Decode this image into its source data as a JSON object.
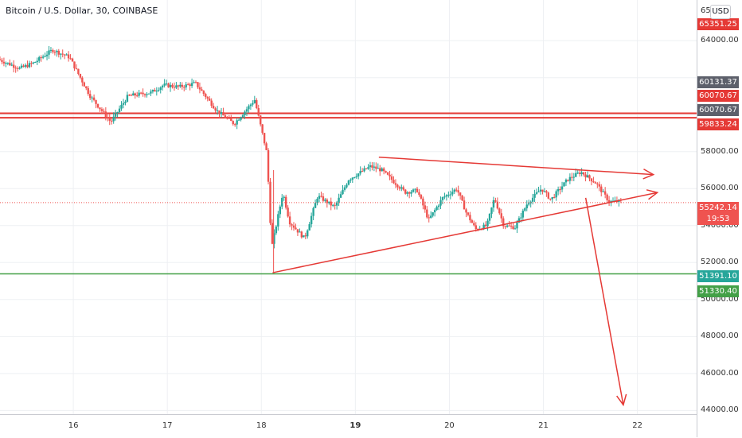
{
  "header": {
    "title": "Bitcoin / U.S. Dollar, 30, COINBASE",
    "currency_button": "USD"
  },
  "price_axis": {
    "labels": [
      "64000.00",
      "58000.00",
      "56000.00",
      "54000.00",
      "52000.00",
      "50000.00",
      "48000.00",
      "46000.00",
      "44000.00"
    ],
    "partial_top_label": "65",
    "badges": [
      {
        "text": "65351.25",
        "color": "#e53935"
      },
      {
        "text": "60131.37",
        "color": "#5d606b"
      },
      {
        "text": "60070.67",
        "color": "#e53935"
      },
      {
        "text": "60070.67",
        "color": "#5d606b"
      },
      {
        "text": "59833.24",
        "color": "#e53935"
      },
      {
        "text": "55242.14",
        "color": "#ef5350"
      },
      {
        "text": "19:53",
        "color": "#ef5350"
      },
      {
        "text": "51391.10",
        "color": "#26a69a"
      },
      {
        "text": "51330.40",
        "color": "#43a047"
      }
    ]
  },
  "time_axis": {
    "labels": [
      "16",
      "17",
      "18",
      "19",
      "20",
      "21",
      "22"
    ],
    "bold": [
      "19"
    ]
  },
  "colors": {
    "up": "#26a69a",
    "down": "#ef5350",
    "drawing": "#e53935",
    "support": "#43a047",
    "grid": "#eef0f3"
  },
  "chart_data": {
    "type": "candlestick",
    "symbol": "Bitcoin / U.S. Dollar",
    "interval": "30",
    "exchange": "COINBASE",
    "last_price": 55242.14,
    "countdown": "19:53",
    "ylim": [
      43800,
      66200
    ],
    "yticks": [
      44000,
      46000,
      48000,
      50000,
      52000,
      54000,
      56000,
      58000,
      64000
    ],
    "xticks": [
      16,
      17,
      18,
      19,
      20,
      21,
      22
    ],
    "xlim": [
      15.22,
      22.63
    ],
    "resistance_lines": [
      60070.67,
      59833.24
    ],
    "support_line": 51391.1,
    "triangle": {
      "upper": [
        [
          19.25,
          57700
        ],
        [
          21.45,
          56800
        ]
      ],
      "lower": [
        [
          18.12,
          51450
        ],
        [
          21.45,
          55700
        ]
      ]
    },
    "projection_arrow": [
      [
        21.45,
        55500
      ],
      [
        21.85,
        44300
      ]
    ],
    "anchors": [
      [
        15.22,
        63000
      ],
      [
        15.45,
        62500
      ],
      [
        15.6,
        62800
      ],
      [
        15.8,
        63500
      ],
      [
        15.98,
        63100
      ],
      [
        16.2,
        61000
      ],
      [
        16.42,
        59600
      ],
      [
        16.6,
        61000
      ],
      [
        16.85,
        61200
      ],
      [
        16.98,
        61600
      ],
      [
        17.15,
        61500
      ],
      [
        17.32,
        61700
      ],
      [
        17.55,
        60200
      ],
      [
        17.73,
        59500
      ],
      [
        17.95,
        60800
      ],
      [
        18.08,
        57900
      ],
      [
        18.13,
        52800
      ],
      [
        18.25,
        55800
      ],
      [
        18.32,
        54200
      ],
      [
        18.48,
        53300
      ],
      [
        18.62,
        55600
      ],
      [
        18.8,
        55000
      ],
      [
        18.95,
        56500
      ],
      [
        19.18,
        57200
      ],
      [
        19.3,
        57000
      ],
      [
        19.55,
        55800
      ],
      [
        19.68,
        55900
      ],
      [
        19.8,
        54300
      ],
      [
        19.95,
        55500
      ],
      [
        20.1,
        56000
      ],
      [
        20.2,
        54700
      ],
      [
        20.3,
        53800
      ],
      [
        20.42,
        54000
      ],
      [
        20.5,
        55500
      ],
      [
        20.6,
        54000
      ],
      [
        20.72,
        53900
      ],
      [
        20.85,
        55200
      ],
      [
        21.0,
        56000
      ],
      [
        21.1,
        55400
      ],
      [
        21.28,
        56500
      ],
      [
        21.42,
        56900
      ],
      [
        21.58,
        56300
      ],
      [
        21.72,
        55300
      ],
      [
        21.83,
        55300
      ]
    ]
  }
}
